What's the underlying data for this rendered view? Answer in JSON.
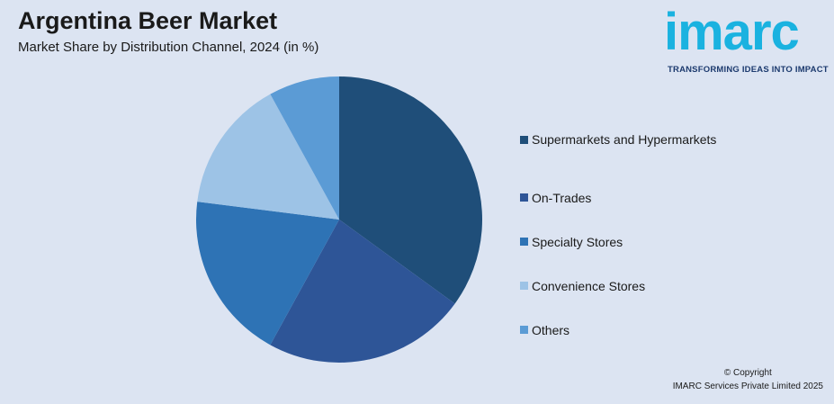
{
  "header": {
    "title": "Argentina Beer Market",
    "subtitle": "Market Share by Distribution Channel, 2024 (in %)"
  },
  "logo": {
    "wordmark": "imarc",
    "tagline": "TRANSFORMING IDEAS INTO IMPACT",
    "color": "#1ab2e0",
    "tagline_color": "#1c3a6e"
  },
  "chart_data": {
    "type": "pie",
    "title": "",
    "categories": [
      "Supermarkets and Hypermarkets",
      "On-Trades",
      "Specialty Stores",
      "Convenience Stores",
      "Others"
    ],
    "values": [
      35,
      23,
      19,
      15,
      8
    ],
    "colors": [
      "#1f4e79",
      "#2e5597",
      "#2e73b5",
      "#9dc3e6",
      "#5b9bd5"
    ],
    "legend_position": "right"
  },
  "footer": {
    "copyright_line1": "© Copyright",
    "copyright_line2": "IMARC Services Private Limited 2025"
  }
}
